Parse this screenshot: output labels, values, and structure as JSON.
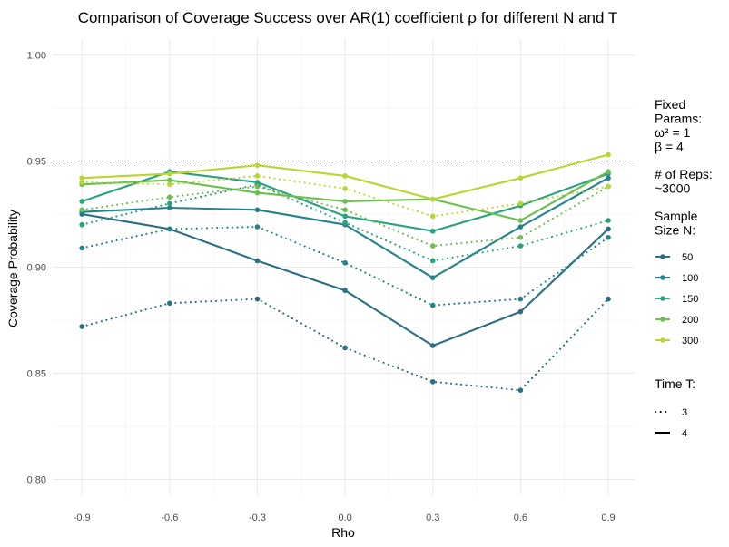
{
  "chart_data": {
    "type": "line",
    "title": "Comparison of Coverage Success over AR(1) coefficient ρ for different N and T",
    "xlabel": "Rho",
    "ylabel": "Coverage Probability",
    "x": [
      -0.9,
      -0.6,
      -0.3,
      0.0,
      0.3,
      0.6,
      0.9
    ],
    "x_tick_labels": [
      "-0.9",
      "-0.6",
      "-0.3",
      "0.0",
      "0.3",
      "0.6",
      "0.9"
    ],
    "xlim": [
      -1.0,
      0.99
    ],
    "ylim": [
      0.7925,
      1.0075
    ],
    "y_ticks": [
      0.8,
      0.85,
      0.9,
      0.95,
      1.0
    ],
    "y_tick_labels": [
      "0.80",
      "0.85",
      "0.90",
      "0.95",
      "1.00"
    ],
    "reference_line": {
      "y": 0.95,
      "style": "dotted",
      "color": "#000000"
    },
    "grid": true,
    "legend": {
      "placement": "right",
      "fixed_params_lines": [
        "Fixed",
        "Params:",
        "ω² = 1",
        "β = 4"
      ],
      "reps_lines": [
        "# of Reps:",
        "~3000"
      ],
      "sample_size_title_lines": [
        "Sample",
        "Size N:"
      ],
      "sample_sizes": [
        {
          "label": "50",
          "color": "#2a6f84"
        },
        {
          "label": "100",
          "color": "#23838c"
        },
        {
          "label": "150",
          "color": "#2aa17f"
        },
        {
          "label": "200",
          "color": "#6bbf4f"
        },
        {
          "label": "300",
          "color": "#b8d530"
        }
      ],
      "time_title": "Time T:",
      "times": [
        {
          "label": "3",
          "linestyle": "dotted"
        },
        {
          "label": "4",
          "linestyle": "solid"
        }
      ]
    },
    "series": [
      {
        "N": "50",
        "T": "3",
        "color": "#2a6f84",
        "linestyle": "dotted",
        "values": [
          0.872,
          0.883,
          0.885,
          0.862,
          0.846,
          0.842,
          0.885
        ]
      },
      {
        "N": "50",
        "T": "4",
        "color": "#2a6f84",
        "linestyle": "solid",
        "values": [
          0.925,
          0.918,
          0.903,
          0.889,
          0.863,
          0.879,
          0.918
        ]
      },
      {
        "N": "100",
        "T": "3",
        "color": "#23838c",
        "linestyle": "dotted",
        "values": [
          0.909,
          0.918,
          0.919,
          0.902,
          0.882,
          0.885,
          0.914
        ]
      },
      {
        "N": "100",
        "T": "4",
        "color": "#23838c",
        "linestyle": "solid",
        "values": [
          0.926,
          0.928,
          0.927,
          0.92,
          0.895,
          0.919,
          0.942
        ]
      },
      {
        "N": "150",
        "T": "3",
        "color": "#2aa17f",
        "linestyle": "dotted",
        "values": [
          0.92,
          0.93,
          0.939,
          0.921,
          0.903,
          0.91,
          0.922
        ]
      },
      {
        "N": "150",
        "T": "4",
        "color": "#2aa17f",
        "linestyle": "solid",
        "values": [
          0.931,
          0.945,
          0.94,
          0.924,
          0.917,
          0.929,
          0.944
        ]
      },
      {
        "N": "200",
        "T": "3",
        "color": "#6bbf4f",
        "linestyle": "dotted",
        "values": [
          0.927,
          0.933,
          0.938,
          0.927,
          0.91,
          0.914,
          0.938
        ]
      },
      {
        "N": "200",
        "T": "4",
        "color": "#6bbf4f",
        "linestyle": "solid",
        "values": [
          0.939,
          0.941,
          0.935,
          0.931,
          0.932,
          0.922,
          0.945
        ]
      },
      {
        "N": "300",
        "T": "3",
        "color": "#b8d530",
        "linestyle": "dotted",
        "values": [
          0.94,
          0.939,
          0.943,
          0.937,
          0.924,
          0.93,
          0.938
        ]
      },
      {
        "N": "300",
        "T": "4",
        "color": "#b8d530",
        "linestyle": "solid",
        "values": [
          0.942,
          0.944,
          0.948,
          0.943,
          0.932,
          0.942,
          0.953
        ]
      }
    ]
  }
}
